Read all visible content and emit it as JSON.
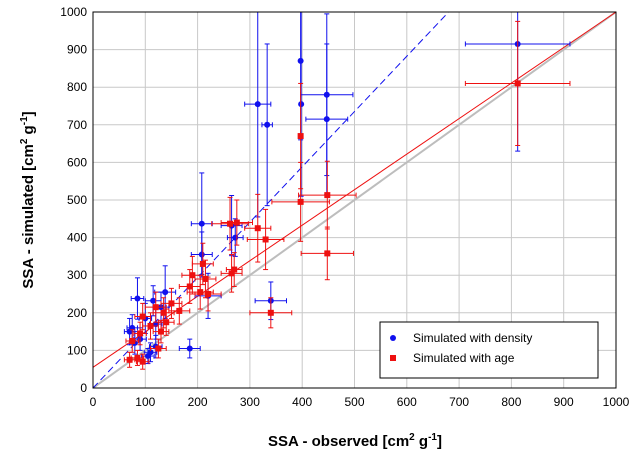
{
  "chart_data": {
    "type": "scatter",
    "xlabel": {
      "main": "SSA - observed [cm",
      "sup": "2",
      "mid": " g",
      "sup2": "-1",
      "end": "]"
    },
    "ylabel": {
      "main": "SSA - simulated [cm",
      "sup": "2",
      "mid": " g",
      "sup2": "-1",
      "end": "]"
    },
    "xlim": [
      0,
      1000
    ],
    "ylim": [
      0,
      1000
    ],
    "xticks": [
      0,
      100,
      200,
      300,
      400,
      500,
      600,
      700,
      800,
      900,
      1000
    ],
    "yticks": [
      0,
      100,
      200,
      300,
      400,
      500,
      600,
      700,
      800,
      900,
      1000
    ],
    "grid": true,
    "legend_position": "bottom-right",
    "colors": {
      "density": "#1010ee",
      "age": "#ee1010",
      "one_to_one": "#bdbdbd"
    },
    "lines": [
      {
        "kind": "one-to-one",
        "color": "#bdbdbd",
        "x": [
          0,
          1000
        ],
        "y": [
          0,
          1000
        ],
        "dash": "solid"
      },
      {
        "kind": "fit-density",
        "color": "#1010ee",
        "x": [
          0,
          680
        ],
        "y": [
          0,
          1000
        ],
        "dash": "dashed"
      },
      {
        "kind": "fit-age",
        "color": "#ee1010",
        "x": [
          0,
          1000
        ],
        "y": [
          55,
          1000
        ],
        "dash": "solid"
      }
    ],
    "series": [
      {
        "name": "Simulated with density",
        "marker": "circle",
        "color": "#1010ee",
        "points": [
          {
            "x": 812,
            "y": 915,
            "xerr": 100,
            "yerr": 285
          },
          {
            "x": 397,
            "y": 870,
            "xerr": 0,
            "yerr": 210
          },
          {
            "x": 398,
            "y": 755,
            "xerr": 0,
            "yerr": 245
          },
          {
            "x": 447,
            "y": 780,
            "xerr": 50,
            "yerr": 215
          },
          {
            "x": 447,
            "y": 715,
            "xerr": 40,
            "yerr": 200
          },
          {
            "x": 315,
            "y": 755,
            "xerr": 25,
            "yerr": 300
          },
          {
            "x": 333,
            "y": 700,
            "xerr": 10,
            "yerr": 215
          },
          {
            "x": 208,
            "y": 437,
            "xerr": 20,
            "yerr": 135
          },
          {
            "x": 265,
            "y": 432,
            "xerr": 20,
            "yerr": 80
          },
          {
            "x": 272,
            "y": 400,
            "xerr": 15,
            "yerr": 50
          },
          {
            "x": 208,
            "y": 355,
            "xerr": 20,
            "yerr": 60
          },
          {
            "x": 138,
            "y": 255,
            "xerr": 20,
            "yerr": 70
          },
          {
            "x": 85,
            "y": 238,
            "xerr": 12,
            "yerr": 55
          },
          {
            "x": 220,
            "y": 245,
            "xerr": 25,
            "yerr": 60
          },
          {
            "x": 115,
            "y": 232,
            "xerr": 15,
            "yerr": 40
          },
          {
            "x": 130,
            "y": 215,
            "xerr": 15,
            "yerr": 40
          },
          {
            "x": 100,
            "y": 185,
            "xerr": 12,
            "yerr": 40
          },
          {
            "x": 120,
            "y": 170,
            "xerr": 12,
            "yerr": 40
          },
          {
            "x": 75,
            "y": 160,
            "xerr": 10,
            "yerr": 35
          },
          {
            "x": 70,
            "y": 150,
            "xerr": 10,
            "yerr": 35
          },
          {
            "x": 90,
            "y": 130,
            "xerr": 12,
            "yerr": 30
          },
          {
            "x": 80,
            "y": 120,
            "xerr": 10,
            "yerr": 30
          },
          {
            "x": 120,
            "y": 110,
            "xerr": 12,
            "yerr": 30
          },
          {
            "x": 185,
            "y": 105,
            "xerr": 20,
            "yerr": 25
          },
          {
            "x": 105,
            "y": 85,
            "xerr": 12,
            "yerr": 20
          },
          {
            "x": 110,
            "y": 95,
            "xerr": 12,
            "yerr": 25
          },
          {
            "x": 340,
            "y": 232,
            "xerr": 30,
            "yerr": 50
          }
        ]
      },
      {
        "name": "Simulated with age",
        "marker": "square",
        "color": "#ee1010",
        "points": [
          {
            "x": 812,
            "y": 810,
            "xerr": 100,
            "yerr": 165
          },
          {
            "x": 397,
            "y": 670,
            "xerr": 0,
            "yerr": 140
          },
          {
            "x": 397,
            "y": 495,
            "xerr": 55,
            "yerr": 105
          },
          {
            "x": 448,
            "y": 513,
            "xerr": 55,
            "yerr": 90
          },
          {
            "x": 448,
            "y": 358,
            "xerr": 50,
            "yerr": 70
          },
          {
            "x": 315,
            "y": 425,
            "xerr": 25,
            "yerr": 90
          },
          {
            "x": 330,
            "y": 395,
            "xerr": 35,
            "yerr": 80
          },
          {
            "x": 262,
            "y": 437,
            "xerr": 35,
            "yerr": 70
          },
          {
            "x": 275,
            "y": 440,
            "xerr": 30,
            "yerr": 60
          },
          {
            "x": 265,
            "y": 305,
            "xerr": 20,
            "yerr": 50
          },
          {
            "x": 270,
            "y": 315,
            "xerr": 15,
            "yerr": 45
          },
          {
            "x": 210,
            "y": 330,
            "xerr": 20,
            "yerr": 55
          },
          {
            "x": 190,
            "y": 300,
            "xerr": 20,
            "yerr": 50
          },
          {
            "x": 215,
            "y": 290,
            "xerr": 20,
            "yerr": 50
          },
          {
            "x": 185,
            "y": 270,
            "xerr": 20,
            "yerr": 45
          },
          {
            "x": 205,
            "y": 255,
            "xerr": 25,
            "yerr": 45
          },
          {
            "x": 220,
            "y": 250,
            "xerr": 25,
            "yerr": 45
          },
          {
            "x": 150,
            "y": 225,
            "xerr": 20,
            "yerr": 40
          },
          {
            "x": 120,
            "y": 215,
            "xerr": 20,
            "yerr": 40
          },
          {
            "x": 135,
            "y": 200,
            "xerr": 20,
            "yerr": 40
          },
          {
            "x": 95,
            "y": 190,
            "xerr": 15,
            "yerr": 35
          },
          {
            "x": 165,
            "y": 205,
            "xerr": 20,
            "yerr": 35
          },
          {
            "x": 110,
            "y": 165,
            "xerr": 15,
            "yerr": 35
          },
          {
            "x": 140,
            "y": 175,
            "xerr": 15,
            "yerr": 35
          },
          {
            "x": 90,
            "y": 145,
            "xerr": 12,
            "yerr": 30
          },
          {
            "x": 75,
            "y": 125,
            "xerr": 12,
            "yerr": 30
          },
          {
            "x": 130,
            "y": 150,
            "xerr": 15,
            "yerr": 30
          },
          {
            "x": 85,
            "y": 80,
            "xerr": 12,
            "yerr": 20
          },
          {
            "x": 70,
            "y": 75,
            "xerr": 10,
            "yerr": 20
          },
          {
            "x": 95,
            "y": 70,
            "xerr": 12,
            "yerr": 20
          },
          {
            "x": 125,
            "y": 105,
            "xerr": 15,
            "yerr": 25
          },
          {
            "x": 340,
            "y": 200,
            "xerr": 40,
            "yerr": 40
          }
        ]
      }
    ]
  }
}
